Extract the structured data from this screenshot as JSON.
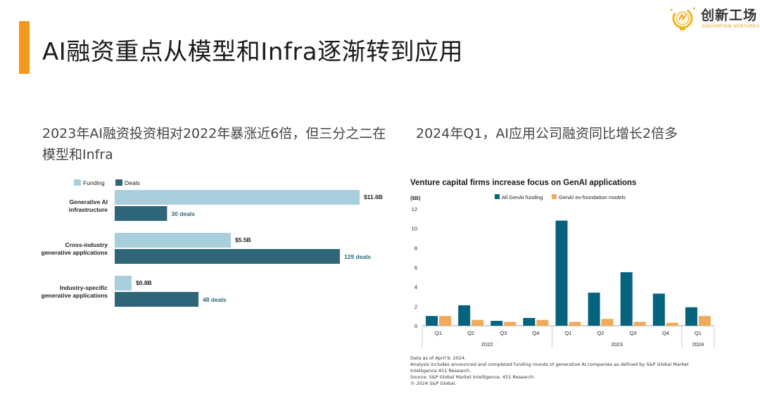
{
  "title": "AI融资重点从模型和Infra逐渐转到应用",
  "logo": {
    "name": "创新工场",
    "english": "SINOVATION VENTURES",
    "icon": "lightbulb-icon"
  },
  "left_subtitle": "2023年AI融资投资相对2022年暴涨近6倍，但三分之二在模型和Infra",
  "right_subtitle": "2024年Q1，AI应用公司融资同比增长2倍多",
  "colors": {
    "accent": "#f39a1e",
    "funding": "#a9cfdc",
    "deals": "#2f6579",
    "genai": "#06637d",
    "exfoundation": "#f2a95a"
  },
  "chart_data": [
    {
      "type": "bar",
      "orientation": "horizontal",
      "categories": [
        [
          "Generative AI",
          "infrastructure"
        ],
        [
          "Cross-industry",
          "generative applications"
        ],
        [
          "Industry-specific",
          "generative applications"
        ]
      ],
      "series": [
        {
          "name": "Funding",
          "values": [
            11.6,
            5.5,
            0.8
          ],
          "labels": [
            "$11.6B",
            "$5.5B",
            "$0.8B"
          ]
        },
        {
          "name": "Deals",
          "values": [
            30,
            129,
            48
          ],
          "labels": [
            "30 deals",
            "129 deals",
            "48 deals"
          ]
        }
      ],
      "legend": "top-left"
    },
    {
      "type": "bar",
      "title": "Venture capital firms increase focus on GenAI applications",
      "ylabel": "($B)",
      "ylim": [
        0,
        12
      ],
      "yticks": [
        0,
        2,
        4,
        6,
        8,
        10,
        12
      ],
      "categories": [
        "Q1",
        "Q2",
        "Q3",
        "Q4",
        "Q1",
        "Q2",
        "Q3",
        "Q4",
        "Q1"
      ],
      "groups": [
        {
          "label": "2022",
          "count": 4
        },
        {
          "label": "2023",
          "count": 4
        },
        {
          "label": "2024",
          "count": 1
        }
      ],
      "series": [
        {
          "name": "All GenAI funding",
          "values": [
            1.0,
            2.1,
            0.5,
            0.8,
            10.8,
            3.4,
            5.5,
            3.3,
            1.9
          ]
        },
        {
          "name": "GenAI ex-foundation models",
          "values": [
            1.0,
            0.6,
            0.4,
            0.6,
            0.4,
            0.7,
            0.4,
            0.3,
            1.0
          ]
        }
      ],
      "legend": "top"
    }
  ],
  "notes": [
    "Data as of April 9, 2024.",
    "Analysis includes announced and completed funding rounds of generative AI companies as defined by S&P Global Market",
    "Intelligence 451 Research.",
    "Source: S&P Global Market Intelligence, 451 Research.",
    "© 2024 S&P Global."
  ]
}
